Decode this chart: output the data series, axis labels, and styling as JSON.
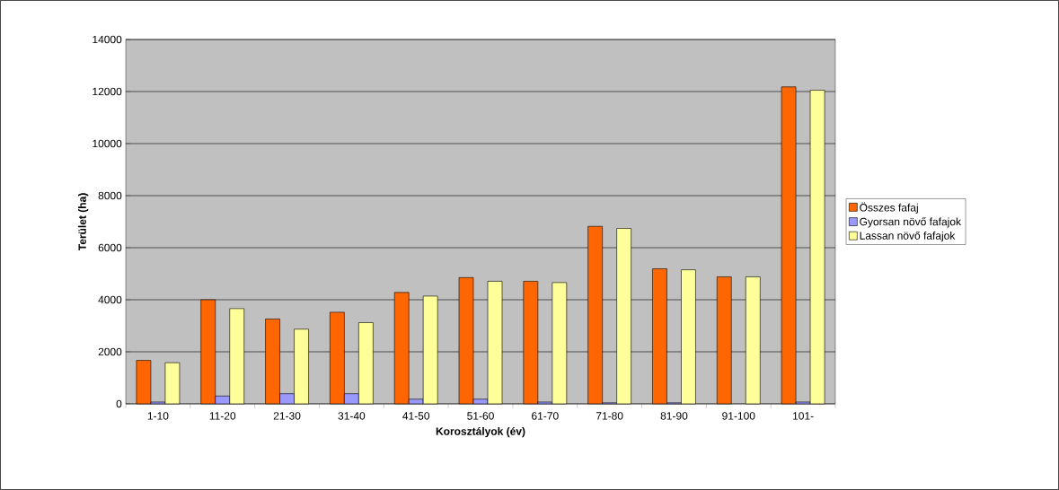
{
  "chart_data": {
    "type": "bar",
    "xlabel": "Korosztályok (év)",
    "ylabel": "Terület (ha)",
    "categories": [
      "1-10",
      "11-20",
      "21-30",
      "31-40",
      "41-50",
      "51-60",
      "61-70",
      "71-80",
      "81-90",
      "91-100",
      "101-"
    ],
    "series": [
      {
        "name": "Összes fafaj",
        "color": "#ff6600",
        "values": [
          1670,
          4000,
          3260,
          3520,
          4280,
          4850,
          4710,
          6820,
          5190,
          4880,
          12180
        ]
      },
      {
        "name": "Gyorsan növő fafajok",
        "color": "#9999ff",
        "values": [
          70,
          300,
          390,
          390,
          180,
          180,
          70,
          40,
          40,
          null,
          70
        ]
      },
      {
        "name": "Lassan növő fafajok",
        "color": "#ffff99",
        "values": [
          1580,
          3660,
          2870,
          3120,
          4140,
          4710,
          4660,
          6740,
          5150,
          4880,
          12050
        ]
      }
    ],
    "ylim": [
      0,
      14000
    ],
    "yticks": [
      0,
      2000,
      4000,
      6000,
      8000,
      10000,
      12000,
      14000
    ],
    "grid": "y",
    "legend": "right"
  }
}
